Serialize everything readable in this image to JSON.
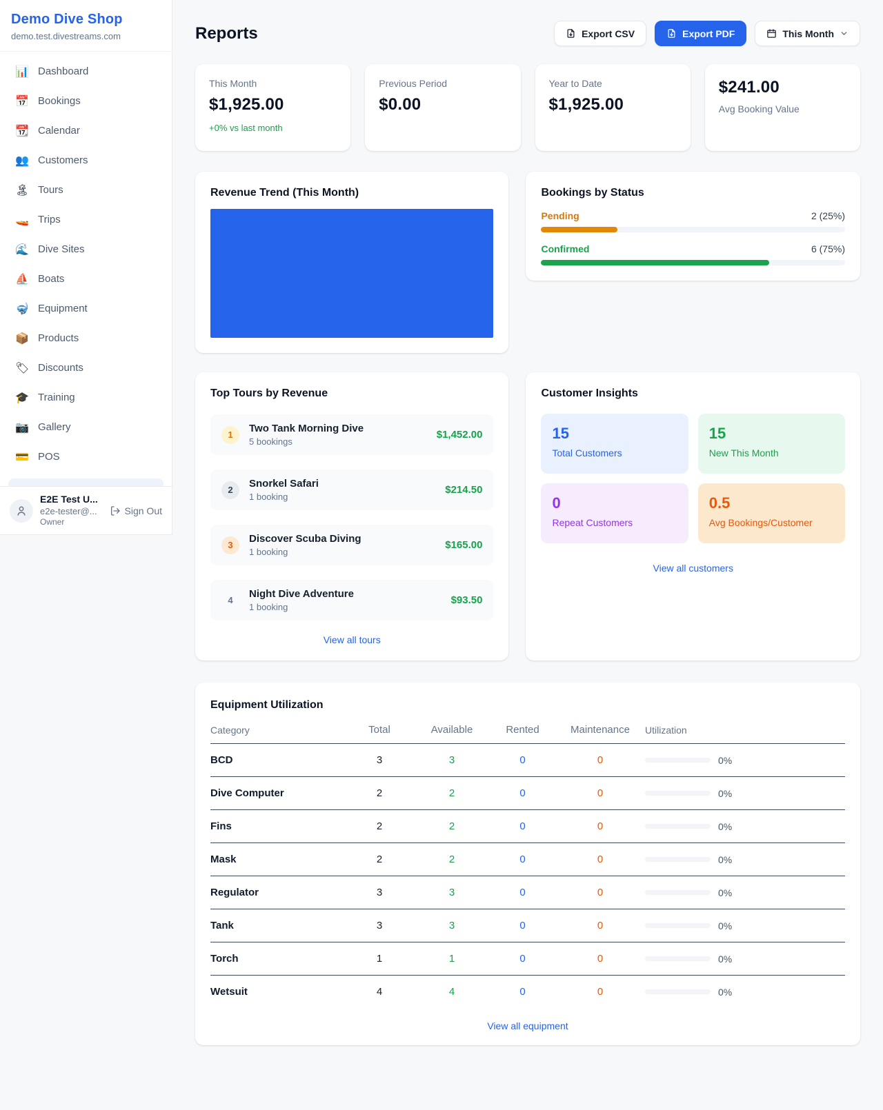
{
  "brand": {
    "name": "Demo Dive Shop",
    "domain": "demo.test.divestreams.com"
  },
  "sidebar": {
    "items": [
      {
        "icon": "📊",
        "label": "Dashboard"
      },
      {
        "icon": "📅",
        "label": "Bookings"
      },
      {
        "icon": "📆",
        "label": "Calendar"
      },
      {
        "icon": "👥",
        "label": "Customers"
      },
      {
        "icon": "🏝",
        "label": "Tours"
      },
      {
        "icon": "🚤",
        "label": "Trips"
      },
      {
        "icon": "🌊",
        "label": "Dive Sites"
      },
      {
        "icon": "⛵",
        "label": "Boats"
      },
      {
        "icon": "🤿",
        "label": "Equipment"
      },
      {
        "icon": "📦",
        "label": "Products"
      },
      {
        "icon": "🏷",
        "label": "Discounts"
      },
      {
        "icon": "🎓",
        "label": "Training"
      },
      {
        "icon": "📷",
        "label": "Gallery"
      },
      {
        "icon": "💳",
        "label": "POS"
      }
    ]
  },
  "user": {
    "name": "E2E Test U...",
    "email": "e2e-tester@...",
    "role": "Owner",
    "sign_out": "Sign Out"
  },
  "header": {
    "title": "Reports",
    "export_csv": "Export CSV",
    "export_pdf": "Export PDF",
    "period": "This Month",
    "accent_color": "#2563eb"
  },
  "stats": [
    {
      "label": "This Month",
      "value": "$1,925.00",
      "delta": "+0% vs last month"
    },
    {
      "label": "Previous Period",
      "value": "$0.00"
    },
    {
      "label": "Year to Date",
      "value": "$1,925.00"
    },
    {
      "label": "Avg Booking Value",
      "value": "$241.00"
    }
  ],
  "revenue_trend": {
    "title": "Revenue Trend (This Month)",
    "bar_color": "#2563eb",
    "fill_pct": 100
  },
  "bookings_by_status": {
    "title": "Bookings by Status",
    "rows": [
      {
        "label": "Pending",
        "count_text": "2 (25%)",
        "pct": 25,
        "color": "#d97706"
      },
      {
        "label": "Confirmed",
        "count_text": "6 (75%)",
        "pct": 75,
        "color": "#16a34a"
      }
    ]
  },
  "top_tours": {
    "title": "Top Tours by Revenue",
    "view_all": "View all tours",
    "items": [
      {
        "rank": "1",
        "name": "Two Tank Morning Dive",
        "bookings": "5 bookings",
        "revenue": "$1,452.00"
      },
      {
        "rank": "2",
        "name": "Snorkel Safari",
        "bookings": "1 booking",
        "revenue": "$214.50"
      },
      {
        "rank": "3",
        "name": "Discover Scuba Diving",
        "bookings": "1 booking",
        "revenue": "$165.00"
      },
      {
        "rank": "4",
        "name": "Night Dive Adventure",
        "bookings": "1 booking",
        "revenue": "$93.50"
      }
    ]
  },
  "customer_insights": {
    "title": "Customer Insights",
    "view_all": "View all customers",
    "tiles": [
      {
        "value": "15",
        "label": "Total Customers",
        "accent": "#2563eb"
      },
      {
        "value": "15",
        "label": "New This Month",
        "accent": "#16a34a"
      },
      {
        "value": "0",
        "label": "Repeat Customers",
        "accent": "#9333ea"
      },
      {
        "value": "0.5",
        "label": "Avg Bookings/Customer",
        "accent": "#ea580c"
      }
    ]
  },
  "equipment": {
    "title": "Equipment Utilization",
    "view_all": "View all equipment",
    "columns": [
      "Category",
      "Total",
      "Available",
      "Rented",
      "Maintenance",
      "Utilization"
    ],
    "rows": [
      {
        "category": "BCD",
        "total": "3",
        "available": "3",
        "rented": "0",
        "maintenance": "0",
        "utilization_text": "0%",
        "utilization_pct": 0
      },
      {
        "category": "Dive Computer",
        "total": "2",
        "available": "2",
        "rented": "0",
        "maintenance": "0",
        "utilization_text": "0%",
        "utilization_pct": 0
      },
      {
        "category": "Fins",
        "total": "2",
        "available": "2",
        "rented": "0",
        "maintenance": "0",
        "utilization_text": "0%",
        "utilization_pct": 0
      },
      {
        "category": "Mask",
        "total": "2",
        "available": "2",
        "rented": "0",
        "maintenance": "0",
        "utilization_text": "0%",
        "utilization_pct": 0
      },
      {
        "category": "Regulator",
        "total": "3",
        "available": "3",
        "rented": "0",
        "maintenance": "0",
        "utilization_text": "0%",
        "utilization_pct": 0
      },
      {
        "category": "Tank",
        "total": "3",
        "available": "3",
        "rented": "0",
        "maintenance": "0",
        "utilization_text": "0%",
        "utilization_pct": 0
      },
      {
        "category": "Torch",
        "total": "1",
        "available": "1",
        "rented": "0",
        "maintenance": "0",
        "utilization_text": "0%",
        "utilization_pct": 0
      },
      {
        "category": "Wetsuit",
        "total": "4",
        "available": "4",
        "rented": "0",
        "maintenance": "0",
        "utilization_text": "0%",
        "utilization_pct": 0
      }
    ]
  }
}
